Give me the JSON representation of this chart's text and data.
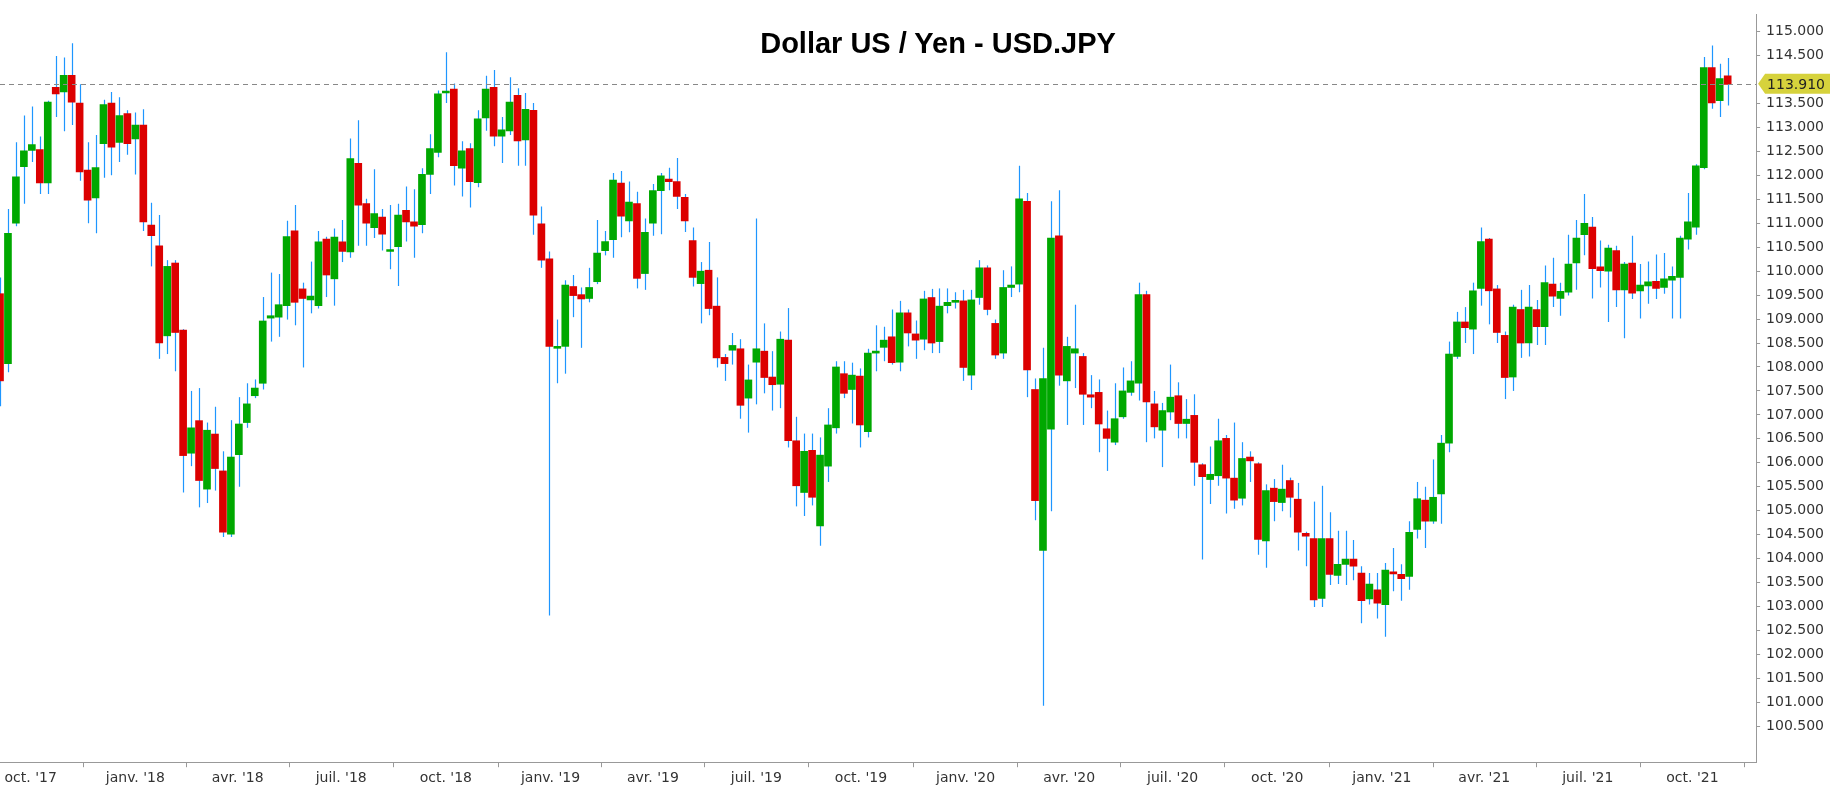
{
  "chart_data": {
    "type": "candlestick",
    "title": "Dollar US / Yen - USD.JPY",
    "x": [
      "2017-09-04",
      "2017-09-11",
      "2017-09-18",
      "2017-09-25",
      "2017-10-02",
      "2017-10-09",
      "2017-10-16",
      "2017-10-23",
      "2017-10-30",
      "2017-11-06",
      "2017-11-13",
      "2017-11-20",
      "2017-11-27",
      "2017-12-04",
      "2017-12-11",
      "2017-12-18",
      "2017-12-25",
      "2018-01-01",
      "2018-01-08",
      "2018-01-15",
      "2018-01-22",
      "2018-01-29",
      "2018-02-05",
      "2018-02-12",
      "2018-02-19",
      "2018-02-26",
      "2018-03-05",
      "2018-03-12",
      "2018-03-19",
      "2018-03-26",
      "2018-04-02",
      "2018-04-09",
      "2018-04-16",
      "2018-04-23",
      "2018-04-30",
      "2018-05-07",
      "2018-05-14",
      "2018-05-21",
      "2018-05-28",
      "2018-06-04",
      "2018-06-11",
      "2018-06-18",
      "2018-06-25",
      "2018-07-02",
      "2018-07-09",
      "2018-07-16",
      "2018-07-23",
      "2018-07-30",
      "2018-08-06",
      "2018-08-13",
      "2018-08-20",
      "2018-08-27",
      "2018-09-03",
      "2018-09-10",
      "2018-09-17",
      "2018-09-24",
      "2018-10-01",
      "2018-10-08",
      "2018-10-15",
      "2018-10-22",
      "2018-10-29",
      "2018-11-05",
      "2018-11-12",
      "2018-11-19",
      "2018-11-26",
      "2018-12-03",
      "2018-12-10",
      "2018-12-17",
      "2018-12-24",
      "2018-12-31",
      "2019-01-07",
      "2019-01-14",
      "2019-01-21",
      "2019-01-28",
      "2019-02-04",
      "2019-02-11",
      "2019-02-18",
      "2019-02-25",
      "2019-03-04",
      "2019-03-11",
      "2019-03-18",
      "2019-03-25",
      "2019-04-01",
      "2019-04-08",
      "2019-04-15",
      "2019-04-22",
      "2019-04-29",
      "2019-05-06",
      "2019-05-13",
      "2019-05-20",
      "2019-05-27",
      "2019-06-03",
      "2019-06-10",
      "2019-06-17",
      "2019-06-24",
      "2019-07-01",
      "2019-07-08",
      "2019-07-15",
      "2019-07-22",
      "2019-07-29",
      "2019-08-05",
      "2019-08-12",
      "2019-08-19",
      "2019-08-26",
      "2019-09-02",
      "2019-09-09",
      "2019-09-16",
      "2019-09-23",
      "2019-09-30",
      "2019-10-07",
      "2019-10-14",
      "2019-10-21",
      "2019-10-28",
      "2019-11-04",
      "2019-11-11",
      "2019-11-18",
      "2019-11-25",
      "2019-12-02",
      "2019-12-09",
      "2019-12-16",
      "2019-12-23",
      "2019-12-30",
      "2020-01-06",
      "2020-01-13",
      "2020-01-20",
      "2020-01-27",
      "2020-02-03",
      "2020-02-10",
      "2020-02-17",
      "2020-02-24",
      "2020-03-02",
      "2020-03-09",
      "2020-03-16",
      "2020-03-23",
      "2020-03-30",
      "2020-04-06",
      "2020-04-13",
      "2020-04-20",
      "2020-04-27",
      "2020-05-04",
      "2020-05-11",
      "2020-05-18",
      "2020-05-25",
      "2020-06-01",
      "2020-06-08",
      "2020-06-15",
      "2020-06-22",
      "2020-06-29",
      "2020-07-06",
      "2020-07-13",
      "2020-07-20",
      "2020-07-27",
      "2020-08-03",
      "2020-08-10",
      "2020-08-17",
      "2020-08-24",
      "2020-08-31",
      "2020-09-07",
      "2020-09-14",
      "2020-09-21",
      "2020-09-28",
      "2020-10-05",
      "2020-10-12",
      "2020-10-19",
      "2020-10-26",
      "2020-11-02",
      "2020-11-09",
      "2020-11-16",
      "2020-11-23",
      "2020-11-30",
      "2020-12-07",
      "2020-12-14",
      "2020-12-21",
      "2020-12-28",
      "2021-01-04",
      "2021-01-11",
      "2021-01-18",
      "2021-01-25",
      "2021-02-01",
      "2021-02-08",
      "2021-02-15",
      "2021-02-22",
      "2021-03-01",
      "2021-03-08",
      "2021-03-15",
      "2021-03-22",
      "2021-03-29",
      "2021-04-05",
      "2021-04-12",
      "2021-04-19",
      "2021-04-26",
      "2021-05-03",
      "2021-05-10",
      "2021-05-17",
      "2021-05-24",
      "2021-05-31",
      "2021-06-07",
      "2021-06-14",
      "2021-06-21",
      "2021-06-28",
      "2021-07-05",
      "2021-07-12",
      "2021-07-19",
      "2021-07-26",
      "2021-08-02",
      "2021-08-09",
      "2021-08-16",
      "2021-08-23",
      "2021-08-30",
      "2021-09-06",
      "2021-09-13",
      "2021-09-20",
      "2021-09-27",
      "2021-10-04",
      "2021-10-11",
      "2021-10-18",
      "2021-10-25",
      "2021-11-01"
    ],
    "ohlc": [
      [
        109.53,
        109.87,
        107.18,
        107.71
      ],
      [
        108.07,
        111.3,
        107.89,
        110.79
      ],
      [
        111.0,
        112.69,
        110.94,
        111.97
      ],
      [
        112.18,
        113.25,
        111.41,
        112.51
      ],
      [
        112.52,
        113.44,
        112.28,
        112.64
      ],
      [
        112.54,
        112.81,
        111.61,
        111.84
      ],
      [
        111.84,
        113.56,
        111.61,
        113.53
      ],
      [
        113.84,
        114.49,
        113.22,
        113.7
      ],
      [
        113.74,
        114.46,
        112.92,
        114.09
      ],
      [
        114.09,
        114.76,
        113.05,
        113.53
      ],
      [
        113.51,
        113.9,
        111.89,
        112.07
      ],
      [
        112.11,
        112.69,
        111.0,
        111.48
      ],
      [
        111.53,
        112.84,
        110.79,
        112.16
      ],
      [
        112.66,
        113.58,
        111.95,
        113.48
      ],
      [
        113.51,
        113.74,
        112.0,
        112.59
      ],
      [
        112.69,
        113.63,
        112.28,
        113.25
      ],
      [
        113.29,
        113.36,
        112.43,
        112.66
      ],
      [
        112.76,
        113.31,
        112.02,
        113.05
      ],
      [
        113.05,
        113.38,
        110.84,
        111.03
      ],
      [
        110.96,
        111.43,
        110.1,
        110.74
      ],
      [
        110.53,
        111.17,
        108.17,
        108.5
      ],
      [
        108.65,
        110.23,
        108.27,
        110.1
      ],
      [
        110.17,
        110.23,
        107.91,
        108.72
      ],
      [
        108.77,
        108.79,
        105.38,
        106.15
      ],
      [
        106.2,
        107.5,
        105.93,
        106.73
      ],
      [
        106.88,
        107.56,
        105.07,
        105.63
      ],
      [
        105.45,
        106.84,
        105.16,
        106.68
      ],
      [
        106.6,
        107.17,
        105.42,
        105.88
      ],
      [
        105.83,
        106.24,
        104.45,
        104.55
      ],
      [
        104.51,
        106.89,
        104.45,
        106.12
      ],
      [
        106.17,
        107.37,
        105.5,
        106.81
      ],
      [
        106.84,
        107.66,
        106.73,
        107.23
      ],
      [
        107.4,
        107.74,
        107.35,
        107.56
      ],
      [
        107.66,
        109.46,
        107.53,
        108.96
      ],
      [
        109.02,
        109.97,
        108.53,
        109.07
      ],
      [
        109.04,
        109.94,
        108.63,
        109.3
      ],
      [
        109.28,
        111.05,
        108.99,
        110.72
      ],
      [
        110.84,
        111.38,
        108.87,
        109.35
      ],
      [
        109.63,
        109.76,
        107.99,
        109.43
      ],
      [
        109.4,
        110.2,
        109.12,
        109.48
      ],
      [
        109.28,
        110.84,
        109.22,
        110.61
      ],
      [
        110.67,
        110.72,
        109.46,
        109.92
      ],
      [
        109.84,
        110.89,
        109.28,
        110.71
      ],
      [
        110.61,
        111.07,
        110.19,
        110.41
      ],
      [
        110.4,
        112.77,
        110.28,
        112.35
      ],
      [
        112.25,
        113.15,
        110.53,
        111.38
      ],
      [
        111.41,
        111.51,
        110.53,
        111.0
      ],
      [
        110.91,
        112.13,
        110.69,
        111.2
      ],
      [
        111.13,
        111.3,
        110.43,
        110.77
      ],
      [
        110.41,
        111.38,
        110.04,
        110.45
      ],
      [
        110.51,
        111.41,
        109.69,
        111.17
      ],
      [
        111.27,
        111.77,
        110.62,
        111.03
      ],
      [
        111.03,
        111.71,
        110.28,
        110.94
      ],
      [
        110.97,
        112.15,
        110.79,
        112.02
      ],
      [
        112.02,
        112.86,
        111.61,
        112.56
      ],
      [
        112.48,
        113.77,
        112.38,
        113.7
      ],
      [
        113.72,
        114.57,
        113.51,
        113.75
      ],
      [
        113.8,
        113.92,
        111.79,
        112.2
      ],
      [
        112.15,
        112.71,
        111.56,
        112.51
      ],
      [
        112.56,
        112.67,
        111.33,
        111.87
      ],
      [
        111.85,
        113.36,
        111.75,
        113.18
      ],
      [
        113.2,
        114.08,
        112.93,
        113.8
      ],
      [
        113.84,
        114.2,
        112.61,
        112.82
      ],
      [
        112.82,
        113.22,
        112.26,
        112.95
      ],
      [
        112.93,
        114.05,
        112.84,
        113.53
      ],
      [
        113.67,
        113.82,
        112.2,
        112.72
      ],
      [
        112.74,
        113.72,
        112.2,
        113.38
      ],
      [
        113.36,
        113.51,
        110.76,
        111.17
      ],
      [
        110.99,
        111.35,
        110.07,
        110.23
      ],
      [
        110.26,
        110.41,
        102.81,
        108.43
      ],
      [
        108.39,
        108.99,
        107.66,
        108.42
      ],
      [
        108.43,
        109.81,
        107.86,
        109.71
      ],
      [
        109.68,
        109.92,
        109.04,
        109.49
      ],
      [
        109.51,
        109.66,
        108.4,
        109.42
      ],
      [
        109.43,
        110.07,
        109.35,
        109.66
      ],
      [
        109.78,
        111.07,
        109.73,
        110.38
      ],
      [
        110.43,
        110.84,
        110.33,
        110.62
      ],
      [
        110.66,
        112.05,
        110.28,
        111.9
      ],
      [
        111.84,
        112.09,
        110.71,
        111.15
      ],
      [
        111.05,
        111.87,
        110.81,
        111.44
      ],
      [
        111.41,
        111.66,
        109.64,
        109.85
      ],
      [
        109.95,
        111.1,
        109.61,
        110.81
      ],
      [
        111.0,
        111.82,
        110.74,
        111.68
      ],
      [
        111.68,
        112.05,
        110.77,
        111.99
      ],
      [
        111.92,
        112.16,
        111.69,
        111.87
      ],
      [
        111.87,
        112.36,
        111.3,
        111.56
      ],
      [
        111.54,
        111.61,
        110.82,
        111.05
      ],
      [
        110.64,
        110.91,
        109.68,
        109.87
      ],
      [
        109.74,
        110.19,
        108.91,
        110.0
      ],
      [
        110.02,
        110.61,
        109.08,
        109.22
      ],
      [
        109.27,
        109.87,
        107.99,
        108.19
      ],
      [
        108.2,
        108.27,
        107.71,
        108.07
      ],
      [
        108.35,
        108.71,
        108.05,
        108.45
      ],
      [
        108.38,
        108.58,
        106.92,
        107.2
      ],
      [
        107.35,
        108.05,
        106.63,
        107.73
      ],
      [
        108.1,
        111.1,
        107.22,
        108.38
      ],
      [
        108.33,
        108.91,
        107.45,
        107.78
      ],
      [
        107.79,
        108.33,
        107.09,
        107.63
      ],
      [
        107.64,
        108.74,
        107.14,
        108.58
      ],
      [
        108.56,
        109.23,
        106.32,
        106.46
      ],
      [
        106.46,
        106.96,
        105.09,
        105.52
      ],
      [
        105.38,
        106.61,
        104.89,
        106.24
      ],
      [
        106.26,
        106.61,
        105.11,
        105.28
      ],
      [
        104.68,
        106.53,
        104.27,
        106.16
      ],
      [
        105.93,
        107.14,
        105.6,
        106.79
      ],
      [
        106.73,
        108.12,
        106.61,
        108.0
      ],
      [
        107.86,
        108.12,
        107.35,
        107.45
      ],
      [
        107.53,
        108.09,
        106.82,
        107.83
      ],
      [
        107.81,
        107.97,
        106.32,
        106.79
      ],
      [
        106.65,
        108.38,
        106.53,
        108.29
      ],
      [
        108.29,
        108.87,
        107.91,
        108.33
      ],
      [
        108.41,
        108.84,
        108.12,
        108.56
      ],
      [
        108.63,
        109.2,
        108.05,
        108.09
      ],
      [
        108.1,
        109.38,
        107.91,
        109.13
      ],
      [
        109.13,
        109.2,
        108.43,
        108.71
      ],
      [
        108.69,
        108.97,
        108.17,
        108.56
      ],
      [
        108.58,
        109.59,
        108.35,
        109.42
      ],
      [
        109.45,
        109.63,
        108.29,
        108.5
      ],
      [
        108.53,
        109.64,
        108.29,
        109.27
      ],
      [
        109.28,
        109.64,
        109.12,
        109.35
      ],
      [
        109.35,
        109.56,
        109.22,
        109.38
      ],
      [
        109.38,
        109.61,
        107.71,
        107.99
      ],
      [
        107.83,
        109.61,
        107.52,
        109.4
      ],
      [
        109.45,
        110.23,
        109.3,
        110.07
      ],
      [
        110.07,
        110.12,
        109.08,
        109.2
      ],
      [
        108.91,
        108.99,
        108.17,
        108.25
      ],
      [
        108.29,
        110.02,
        108.17,
        109.66
      ],
      [
        109.66,
        110.1,
        109.46,
        109.71
      ],
      [
        109.73,
        112.2,
        109.56,
        111.51
      ],
      [
        111.46,
        111.63,
        107.37,
        107.94
      ],
      [
        107.53,
        107.76,
        104.8,
        105.21
      ],
      [
        104.17,
        108.4,
        100.93,
        107.76
      ],
      [
        106.7,
        111.46,
        104.99,
        110.69
      ],
      [
        110.74,
        111.69,
        107.61,
        107.83
      ],
      [
        107.71,
        108.63,
        106.79,
        108.43
      ],
      [
        108.29,
        109.3,
        107.56,
        108.38
      ],
      [
        108.22,
        108.29,
        106.79,
        107.43
      ],
      [
        107.42,
        107.83,
        107.14,
        107.37
      ],
      [
        107.47,
        107.74,
        106.22,
        106.81
      ],
      [
        106.71,
        107.09,
        105.83,
        106.51
      ],
      [
        106.43,
        107.66,
        106.37,
        106.92
      ],
      [
        106.96,
        107.99,
        106.92,
        107.5
      ],
      [
        107.47,
        108.12,
        107.4,
        107.71
      ],
      [
        107.66,
        109.76,
        107.3,
        109.51
      ],
      [
        109.51,
        109.59,
        106.43,
        107.27
      ],
      [
        107.23,
        107.5,
        106.51,
        106.75
      ],
      [
        106.68,
        107.25,
        105.91,
        107.09
      ],
      [
        107.06,
        108.05,
        106.89,
        107.37
      ],
      [
        107.4,
        107.68,
        106.51,
        106.82
      ],
      [
        106.82,
        107.33,
        106.51,
        106.91
      ],
      [
        106.99,
        107.43,
        105.52,
        106.01
      ],
      [
        105.96,
        105.99,
        103.98,
        105.71
      ],
      [
        105.65,
        106.34,
        105.14,
        105.76
      ],
      [
        105.73,
        106.92,
        105.52,
        106.46
      ],
      [
        106.51,
        106.58,
        104.94,
        105.68
      ],
      [
        105.68,
        106.84,
        105.04,
        105.22
      ],
      [
        105.26,
        106.43,
        105.11,
        106.09
      ],
      [
        106.12,
        106.24,
        105.6,
        106.04
      ],
      [
        105.98,
        106.01,
        104.08,
        104.4
      ],
      [
        104.37,
        105.55,
        103.81,
        105.42
      ],
      [
        105.47,
        105.66,
        104.78,
        105.19
      ],
      [
        105.17,
        105.96,
        104.99,
        105.45
      ],
      [
        105.63,
        105.69,
        104.86,
        105.28
      ],
      [
        105.24,
        105.58,
        104.17,
        104.55
      ],
      [
        104.53,
        104.56,
        103.84,
        104.47
      ],
      [
        104.42,
        105.19,
        102.99,
        103.14
      ],
      [
        103.17,
        105.52,
        102.99,
        104.42
      ],
      [
        104.42,
        104.97,
        103.45,
        103.67
      ],
      [
        103.65,
        104.58,
        103.47,
        103.88
      ],
      [
        103.88,
        104.58,
        103.45,
        103.99
      ],
      [
        103.99,
        104.39,
        103.55,
        103.84
      ],
      [
        103.7,
        103.84,
        102.65,
        103.12
      ],
      [
        103.16,
        103.7,
        103.04,
        103.47
      ],
      [
        103.35,
        103.7,
        102.75,
        103.07
      ],
      [
        103.04,
        103.91,
        102.37,
        103.76
      ],
      [
        103.72,
        104.22,
        103.32,
        103.68
      ],
      [
        103.67,
        103.88,
        103.12,
        103.58
      ],
      [
        103.63,
        104.78,
        103.35,
        104.55
      ],
      [
        104.61,
        105.6,
        104.42,
        105.25
      ],
      [
        105.22,
        105.5,
        104.22,
        104.78
      ],
      [
        104.78,
        106.07,
        104.73,
        105.28
      ],
      [
        105.35,
        106.58,
        104.73,
        106.41
      ],
      [
        106.41,
        108.53,
        106.22,
        108.27
      ],
      [
        108.22,
        109.15,
        108.17,
        108.94
      ],
      [
        108.94,
        109.25,
        108.5,
        108.82
      ],
      [
        108.79,
        109.76,
        108.27,
        109.59
      ],
      [
        109.64,
        110.91,
        109.28,
        110.62
      ],
      [
        110.67,
        110.69,
        108.89,
        109.59
      ],
      [
        109.63,
        109.71,
        108.5,
        108.72
      ],
      [
        108.66,
        108.74,
        107.33,
        107.78
      ],
      [
        107.79,
        109.3,
        107.5,
        109.25
      ],
      [
        109.2,
        109.61,
        108.19,
        108.5
      ],
      [
        108.5,
        109.71,
        108.22,
        109.25
      ],
      [
        109.2,
        109.4,
        108.46,
        108.84
      ],
      [
        108.84,
        110.12,
        108.46,
        109.76
      ],
      [
        109.73,
        110.28,
        109.25,
        109.48
      ],
      [
        109.43,
        109.76,
        109.07,
        109.58
      ],
      [
        109.56,
        110.76,
        109.49,
        110.15
      ],
      [
        110.17,
        111.07,
        109.61,
        110.69
      ],
      [
        110.76,
        111.61,
        110.33,
        111.0
      ],
      [
        110.92,
        111.13,
        109.43,
        110.05
      ],
      [
        110.09,
        110.64,
        109.66,
        110.01
      ],
      [
        110.0,
        110.55,
        108.94,
        110.48
      ],
      [
        110.43,
        110.53,
        109.25,
        109.61
      ],
      [
        109.61,
        110.19,
        108.6,
        110.15
      ],
      [
        110.17,
        110.74,
        109.42,
        109.54
      ],
      [
        109.59,
        110.15,
        109.01,
        109.71
      ],
      [
        109.69,
        110.2,
        109.32,
        109.78
      ],
      [
        109.79,
        110.35,
        109.42,
        109.64
      ],
      [
        109.66,
        110.38,
        109.53,
        109.84
      ],
      [
        109.81,
        110.1,
        109.01,
        109.89
      ],
      [
        109.87,
        110.74,
        109.01,
        110.69
      ],
      [
        110.67,
        111.63,
        110.45,
        111.03
      ],
      [
        110.92,
        112.23,
        110.76,
        112.2
      ],
      [
        112.16,
        114.47,
        112.13,
        114.25
      ],
      [
        114.25,
        114.71,
        113.39,
        113.51
      ],
      [
        113.56,
        114.33,
        113.22,
        114.02
      ],
      [
        114.08,
        114.45,
        113.46,
        113.9
      ]
    ],
    "xlim": [
      "2017-09-04",
      "2021-11-26"
    ],
    "xticks": [
      {
        "value": "2017-10-01",
        "label": "oct. '17"
      },
      {
        "value": "2018-01-01",
        "label": "janv. '18"
      },
      {
        "value": "2018-04-01",
        "label": "avr. '18"
      },
      {
        "value": "2018-07-01",
        "label": "juil. '18"
      },
      {
        "value": "2018-10-01",
        "label": "oct. '18"
      },
      {
        "value": "2019-01-01",
        "label": "janv. '19"
      },
      {
        "value": "2019-04-01",
        "label": "avr. '19"
      },
      {
        "value": "2019-07-01",
        "label": "juil. '19"
      },
      {
        "value": "2019-10-01",
        "label": "oct. '19"
      },
      {
        "value": "2020-01-01",
        "label": "janv. '20"
      },
      {
        "value": "2020-04-01",
        "label": "avr. '20"
      },
      {
        "value": "2020-07-01",
        "label": "juil. '20"
      },
      {
        "value": "2020-10-01",
        "label": "oct. '20"
      },
      {
        "value": "2021-01-01",
        "label": "janv. '21"
      },
      {
        "value": "2021-04-01",
        "label": "avr. '21"
      },
      {
        "value": "2021-07-01",
        "label": "juil. '21"
      },
      {
        "value": "2021-10-01",
        "label": "oct. '21"
      }
    ],
    "ylim": [
      99.75,
      115.36
    ],
    "yticks": [
      {
        "value": 100.5,
        "label": "100.500"
      },
      {
        "value": 101,
        "label": "101.000"
      },
      {
        "value": 101.5,
        "label": "101.500"
      },
      {
        "value": 102,
        "label": "102.000"
      },
      {
        "value": 102.5,
        "label": "102.500"
      },
      {
        "value": 103,
        "label": "103.000"
      },
      {
        "value": 103.5,
        "label": "103.500"
      },
      {
        "value": 104,
        "label": "104.000"
      },
      {
        "value": 104.5,
        "label": "104.500"
      },
      {
        "value": 105,
        "label": "105.000"
      },
      {
        "value": 105.5,
        "label": "105.500"
      },
      {
        "value": 106,
        "label": "106.000"
      },
      {
        "value": 106.5,
        "label": "106.500"
      },
      {
        "value": 107,
        "label": "107.000"
      },
      {
        "value": 107.5,
        "label": "107.500"
      },
      {
        "value": 108,
        "label": "108.000"
      },
      {
        "value": 108.5,
        "label": "108.500"
      },
      {
        "value": 109,
        "label": "109.000"
      },
      {
        "value": 109.5,
        "label": "109.500"
      },
      {
        "value": 110,
        "label": "110.000"
      },
      {
        "value": 110.5,
        "label": "110.500"
      },
      {
        "value": 111,
        "label": "111.000"
      },
      {
        "value": 111.5,
        "label": "111.500"
      },
      {
        "value": 112,
        "label": "112.000"
      },
      {
        "value": 112.5,
        "label": "112.500"
      },
      {
        "value": 113,
        "label": "113.000"
      },
      {
        "value": 113.5,
        "label": "113.500"
      },
      {
        "value": 114.5,
        "label": "114.500"
      },
      {
        "value": 115,
        "label": "115.000"
      }
    ],
    "ref_lines": [
      {
        "axis": "y",
        "value": 113.91,
        "label": "113.910",
        "color": "#888888",
        "line_style": "dashed"
      }
    ]
  }
}
